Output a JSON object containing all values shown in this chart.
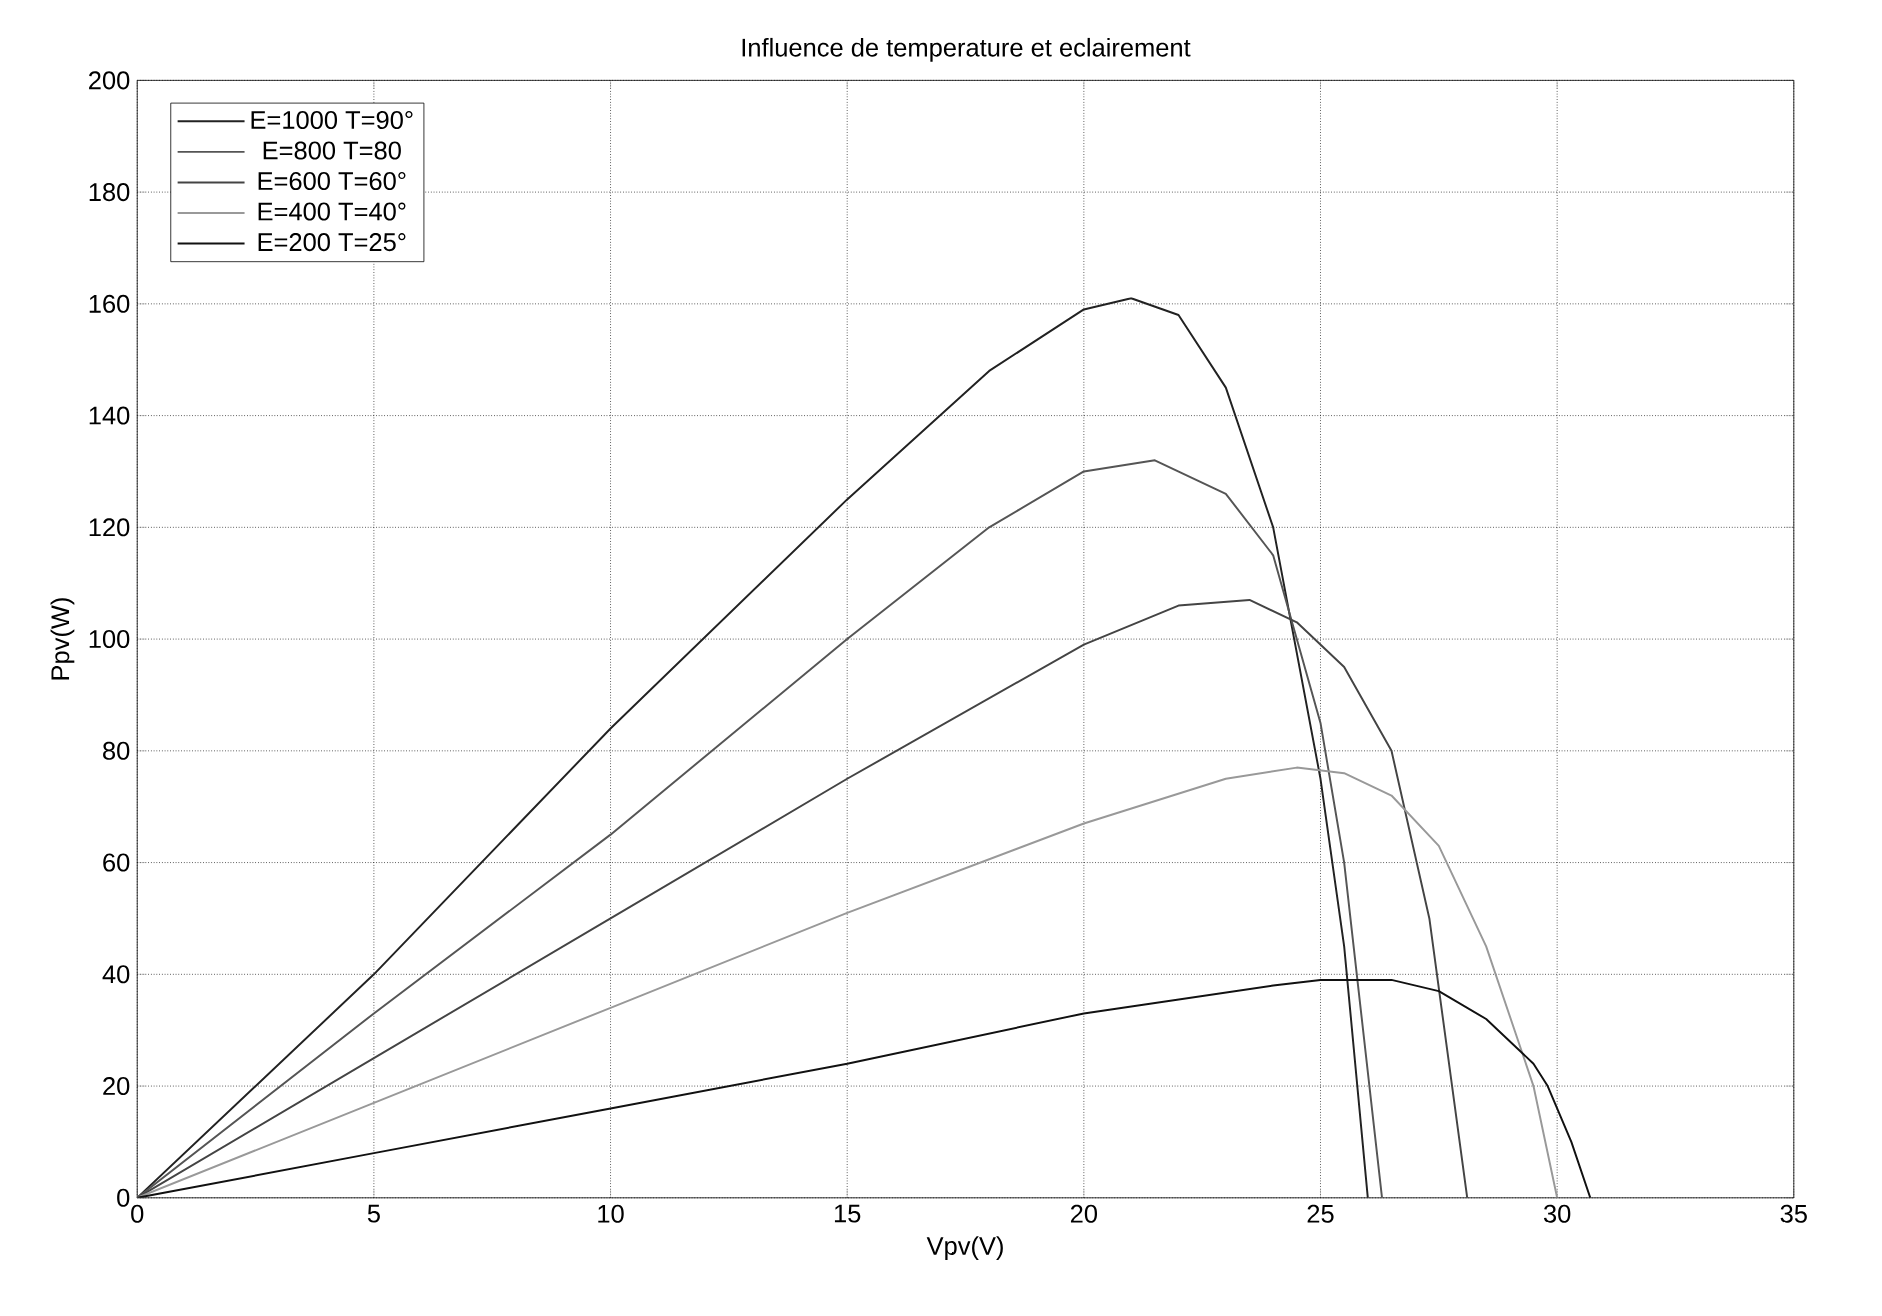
{
  "chart_data": {
    "type": "line",
    "title": "Influence de temperature et eclairement",
    "xlabel": "Vpv(V)",
    "ylabel": "Ppv(W)",
    "xlim": [
      0,
      35
    ],
    "ylim": [
      0,
      200
    ],
    "xticks": [
      0,
      5,
      10,
      15,
      20,
      25,
      30,
      35
    ],
    "yticks": [
      0,
      20,
      40,
      60,
      80,
      100,
      120,
      140,
      160,
      180,
      200
    ],
    "grid": true,
    "legend": "top left",
    "marker": "none",
    "line_style": "solid",
    "series": [
      {
        "name": "E=1000 T=90°",
        "color": "#222222",
        "x": [
          0,
          5,
          10,
          15,
          18,
          20,
          21,
          22,
          23,
          24,
          25,
          25.5,
          26
        ],
        "values": [
          0,
          40,
          84,
          125,
          148,
          159,
          161,
          158,
          145,
          120,
          75,
          45,
          0
        ]
      },
      {
        "name": "E=800 T=80",
        "color": "#555555",
        "x": [
          0,
          5,
          10,
          15,
          18,
          20,
          21.5,
          23,
          24,
          25,
          25.5,
          26.3
        ],
        "values": [
          0,
          33,
          65,
          100,
          120,
          130,
          132,
          126,
          115,
          85,
          60,
          0
        ]
      },
      {
        "name": "E=600 T=60°",
        "color": "#444444",
        "x": [
          0,
          5,
          10,
          15,
          20,
          22,
          23.5,
          24.5,
          25.5,
          26.5,
          27.3,
          28.1
        ],
        "values": [
          0,
          25,
          50,
          75,
          99,
          106,
          107,
          103,
          95,
          80,
          50,
          0
        ]
      },
      {
        "name": "E=400 T=40°",
        "color": "#999999",
        "x": [
          0,
          5,
          10,
          15,
          20,
          23,
          24.5,
          25.5,
          26.5,
          27.5,
          28.5,
          29.5,
          30
        ],
        "values": [
          0,
          17,
          34,
          51,
          67,
          75,
          77,
          76,
          72,
          63,
          45,
          20,
          0
        ]
      },
      {
        "name": "E=200 T=25°",
        "color": "#111111",
        "x": [
          0,
          5,
          10,
          15,
          20,
          24,
          25,
          26.5,
          27.5,
          28.5,
          29.5,
          29.8,
          30.3,
          30.7
        ],
        "values": [
          0,
          8,
          16,
          24,
          33,
          38,
          39,
          39,
          37,
          32,
          24,
          20,
          10,
          0
        ]
      }
    ]
  }
}
